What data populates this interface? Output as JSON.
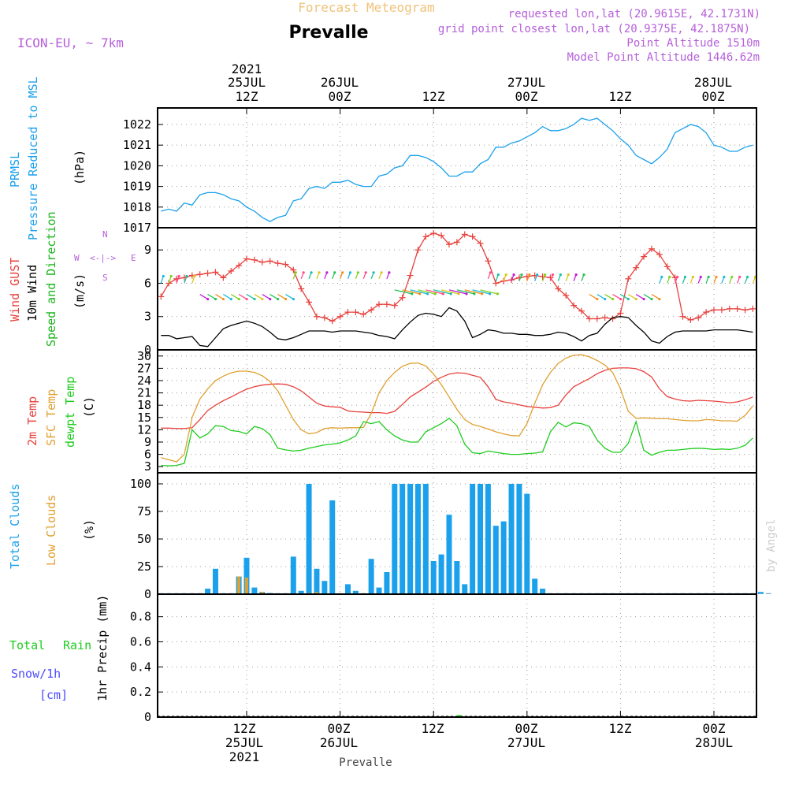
{
  "header": {
    "super_title": "Forecast Meteogram",
    "location": "Prevalle",
    "model": "ICON-EU, ~ 7km",
    "requested": "requested lon,lat (20.9615E, 42.1731N)",
    "grid_point": "grid point closest lon,lat (20.9375E, 42.1875N)",
    "point_altitude": "Point Altitude 1510m",
    "model_altitude": "Model Point Altitude 1446.62m",
    "watermark": "by Angel",
    "bottom_label": "Prevalle"
  },
  "colors": {
    "pressure": "#1ba1ec",
    "gust": "#e8413c",
    "wind": "#000000",
    "wind_dir": "#1bb51b",
    "temp": "#e8413c",
    "sfc": "#e0a030",
    "dew": "#1ecb1e",
    "clouds": "#1ba1ec",
    "low_clouds": "#e0a030",
    "rain": "#1ecb1e",
    "snow": "#4c4cff",
    "header_purple": "#b55fd9",
    "header_orange": "#f0c27a"
  },
  "time_axis": {
    "top_labels": [
      {
        "line1": "2021",
        "line2": "25JUL",
        "line3": "12Z"
      },
      {
        "line1": "",
        "line2": "26JUL",
        "line3": "00Z"
      },
      {
        "line1": "",
        "line2": "",
        "line3": "12Z"
      },
      {
        "line1": "",
        "line2": "27JUL",
        "line3": "00Z"
      },
      {
        "line1": "",
        "line2": "",
        "line3": "12Z"
      },
      {
        "line1": "",
        "line2": "28JUL",
        "line3": "00Z"
      }
    ],
    "bottom_labels": [
      {
        "line1": "12Z",
        "line2": "25JUL",
        "line3": "2021"
      },
      {
        "line1": "00Z",
        "line2": "26JUL",
        "line3": ""
      },
      {
        "line1": "12Z",
        "line2": "",
        "line3": ""
      },
      {
        "line1": "00Z",
        "line2": "27JUL",
        "line3": ""
      },
      {
        "line1": "12Z",
        "line2": "",
        "line3": ""
      },
      {
        "line1": "00Z",
        "line2": "28JUL",
        "line3": ""
      }
    ]
  },
  "panels": {
    "pressure": {
      "label1": "PRMSL",
      "label2": "Pressure Reduced to MSL",
      "unit": "(hPa)"
    },
    "wind": {
      "label1": "Wind GUST",
      "label2": "10m Wind",
      "label3": "Speed and Direction",
      "unit": "(m/s)",
      "compass": {
        "n": "N",
        "s": "S",
        "w": "W",
        "e": "E"
      }
    },
    "temp": {
      "label1": "2m Temp",
      "label2": "SFC Temp",
      "label3": "dewpt Temp",
      "unit": "(C)"
    },
    "clouds": {
      "label1": "Total Clouds",
      "label2": "Low Clouds",
      "unit": "(%)"
    },
    "precip": {
      "label1": "Total",
      "label2": "Rain",
      "label3": "Snow/1h",
      "label4": "[cm]",
      "unit": "1hr Precip (mm)"
    }
  },
  "chart_data": [
    {
      "type": "line",
      "name": "pressure",
      "hours_from": 0,
      "ylim": [
        1017,
        1022.8
      ],
      "yticks": [
        1017,
        1018,
        1019,
        1020,
        1021,
        1022
      ],
      "series": [
        {
          "key": "prmsl",
          "values": [
            1017.8,
            1017.9,
            1017.8,
            1018.2,
            1018.1,
            1018.6,
            1018.7,
            1018.7,
            1018.6,
            1018.4,
            1018.3,
            1018.0,
            1017.8,
            1017.5,
            1017.3,
            1017.5,
            1017.6,
            1018.3,
            1018.4,
            1018.9,
            1019.0,
            1018.9,
            1019.2,
            1019.2,
            1019.3,
            1019.1,
            1019.0,
            1019.0,
            1019.5,
            1019.6,
            1019.9,
            1020.0,
            1020.5,
            1020.5,
            1020.4,
            1020.2,
            1019.9,
            1019.5,
            1019.5,
            1019.7,
            1019.7,
            1020.1,
            1020.3,
            1020.9,
            1020.9,
            1021.1,
            1021.2,
            1021.4,
            1021.6,
            1021.9,
            1021.7,
            1021.7,
            1021.8,
            1022.0,
            1022.3,
            1022.2,
            1022.3,
            1022.0,
            1021.7,
            1021.3,
            1021.0,
            1020.5,
            1020.3,
            1020.1,
            1020.4,
            1020.8,
            1021.6,
            1021.8,
            1022.0,
            1021.9,
            1021.6,
            1021.0,
            1020.9,
            1020.7,
            1020.7,
            1020.9,
            1021.0
          ]
        }
      ]
    },
    {
      "type": "line",
      "name": "wind",
      "ylim": [
        0,
        11
      ],
      "yticks": [
        0,
        3,
        6,
        9
      ],
      "series": [
        {
          "key": "gust",
          "values": [
            4.8,
            6.0,
            6.4,
            6.5,
            6.7,
            6.8,
            6.9,
            7.0,
            6.5,
            7.1,
            7.6,
            8.2,
            8.1,
            7.9,
            8.0,
            7.8,
            7.7,
            7.2,
            5.5,
            4.3,
            3.0,
            2.9,
            2.6,
            3.0,
            3.4,
            3.4,
            3.2,
            3.6,
            4.1,
            4.1,
            4.0,
            4.7,
            6.7,
            9.0,
            10.2,
            10.5,
            10.3,
            9.5,
            9.7,
            10.4,
            10.2,
            9.6,
            8.0,
            6.0,
            6.2,
            6.3,
            6.5,
            6.6,
            6.7,
            6.6,
            6.5,
            5.5,
            4.9,
            4.0,
            3.5,
            2.8,
            2.8,
            2.9,
            2.8,
            3.3,
            6.4,
            7.4,
            8.4,
            9.1,
            8.6,
            7.5,
            6.5,
            3.0,
            2.7,
            2.9,
            3.4,
            3.6,
            3.6,
            3.7,
            3.7,
            3.6,
            3.7
          ]
        },
        {
          "key": "wind10m",
          "values": [
            1.3,
            1.3,
            1.0,
            1.1,
            1.2,
            0.4,
            0.3,
            1.1,
            1.9,
            2.2,
            2.4,
            2.6,
            2.4,
            2.1,
            1.6,
            1.0,
            0.9,
            1.1,
            1.4,
            1.7,
            1.7,
            1.7,
            1.6,
            1.7,
            1.7,
            1.7,
            1.6,
            1.5,
            1.3,
            1.2,
            1.0,
            1.8,
            2.5,
            3.1,
            3.3,
            3.2,
            3.0,
            3.8,
            3.5,
            2.6,
            1.1,
            1.4,
            1.8,
            1.7,
            1.5,
            1.5,
            1.4,
            1.4,
            1.3,
            1.3,
            1.4,
            1.6,
            1.5,
            1.2,
            0.8,
            1.3,
            1.5,
            2.3,
            2.9,
            3.0,
            2.9,
            2.2,
            1.6,
            0.8,
            0.6,
            1.2,
            1.6,
            1.7,
            1.7,
            1.7,
            1.7,
            1.8,
            1.8,
            1.8,
            1.8,
            1.7,
            1.6
          ]
        }
      ]
    },
    {
      "type": "line",
      "name": "temperature",
      "ylim": [
        1.5,
        31.5
      ],
      "yticks": [
        3,
        6,
        9,
        12,
        15,
        18,
        21,
        24,
        27,
        30
      ],
      "series": [
        {
          "key": "t2m",
          "values": [
            12.4,
            12.4,
            12.3,
            12.3,
            12.5,
            14.5,
            16.7,
            18.0,
            19.1,
            20.0,
            21.0,
            21.9,
            22.5,
            22.9,
            23.1,
            23.2,
            23.1,
            22.5,
            21.5,
            20.0,
            18.5,
            17.8,
            17.6,
            17.5,
            16.6,
            16.4,
            16.3,
            16.2,
            16.2,
            16.0,
            16.5,
            18.2,
            20.0,
            21.2,
            22.4,
            23.8,
            24.8,
            25.6,
            25.9,
            25.8,
            25.3,
            24.8,
            22.5,
            19.4,
            18.8,
            18.5,
            18.1,
            17.7,
            17.5,
            17.3,
            17.4,
            18.0,
            20.5,
            22.5,
            23.5,
            24.5,
            25.7,
            26.5,
            27.0,
            27.1,
            27.1,
            26.9,
            26.2,
            24.9,
            22.0,
            20.1,
            19.5,
            19.1,
            19.0,
            19.2,
            19.1,
            19.0,
            18.8,
            18.6,
            18.8,
            19.3,
            20.0
          ]
        },
        {
          "key": "sfc",
          "values": [
            5.2,
            4.7,
            4.2,
            6.0,
            15.0,
            19.5,
            22.0,
            24.0,
            25.1,
            25.9,
            26.3,
            26.3,
            26.0,
            25.2,
            23.8,
            21.5,
            18.0,
            14.5,
            12.0,
            11.0,
            11.3,
            12.3,
            12.5,
            12.4,
            12.5,
            12.5,
            12.6,
            16.0,
            21.0,
            24.0,
            26.0,
            27.5,
            28.2,
            28.3,
            27.6,
            25.6,
            23.0,
            20.0,
            17.0,
            14.5,
            13.3,
            12.8,
            12.2,
            11.5,
            11.0,
            10.6,
            10.5,
            13.5,
            18.5,
            23.0,
            26.0,
            28.2,
            29.5,
            30.2,
            30.3,
            29.8,
            28.9,
            27.8,
            26.0,
            22.0,
            16.5,
            14.8,
            14.9,
            14.8,
            14.7,
            14.7,
            14.5,
            14.3,
            14.2,
            14.2,
            14.5,
            14.4,
            14.2,
            14.2,
            14.1,
            15.5,
            17.8
          ]
        },
        {
          "key": "dew",
          "values": [
            3.3,
            3.2,
            3.3,
            3.8,
            12.0,
            10.0,
            11.0,
            13.0,
            12.8,
            11.8,
            11.6,
            11.0,
            12.8,
            12.3,
            10.8,
            7.5,
            7.1,
            6.8,
            7.0,
            7.5,
            7.9,
            8.3,
            8.5,
            8.8,
            9.5,
            10.5,
            14.0,
            13.5,
            14.0,
            12.0,
            10.5,
            9.5,
            9.0,
            9.0,
            11.5,
            12.5,
            13.5,
            14.8,
            13.0,
            8.5,
            6.4,
            6.2,
            6.8,
            6.5,
            6.2,
            6.0,
            6.0,
            6.2,
            6.3,
            6.6,
            11.5,
            13.8,
            12.7,
            13.7,
            13.5,
            12.8,
            9.5,
            7.5,
            6.5,
            6.5,
            8.7,
            14.0,
            7.0,
            5.8,
            6.5,
            7.0,
            7.0,
            7.2,
            7.4,
            7.5,
            7.4,
            7.2,
            7.3,
            7.2,
            7.5,
            8.2,
            10.0
          ]
        }
      ]
    },
    {
      "type": "bar",
      "name": "clouds",
      "ylim": [
        0,
        110
      ],
      "yticks": [
        0,
        25,
        50,
        75,
        100
      ],
      "series": [
        {
          "key": "total",
          "values": [
            0,
            0,
            0,
            0,
            0,
            0,
            5,
            23,
            0,
            0,
            16,
            33,
            6,
            2,
            1,
            0,
            0,
            34,
            3,
            100,
            23,
            12,
            85,
            0,
            9,
            3,
            0,
            32,
            6,
            20,
            100,
            100,
            100,
            100,
            100,
            30,
            36,
            72,
            30,
            9,
            100,
            100,
            100,
            62,
            66,
            100,
            100,
            91,
            14,
            5,
            0,
            0,
            0,
            0,
            0,
            0,
            0,
            0,
            0,
            0,
            0,
            0,
            0,
            0,
            0,
            0,
            0,
            0,
            0,
            0,
            0,
            0,
            0,
            0,
            0,
            0,
            0,
            2,
            0
          ]
        },
        {
          "key": "low",
          "values": [
            0,
            0,
            0,
            0,
            0,
            0,
            0,
            0,
            0,
            0,
            16,
            15,
            0,
            2,
            0,
            0,
            0,
            0,
            0,
            1,
            2,
            0,
            0,
            0,
            0,
            0,
            0,
            0,
            0,
            0,
            0,
            0,
            0,
            0,
            0,
            0,
            0,
            0,
            0,
            0,
            0,
            0,
            0,
            0,
            0,
            0,
            0,
            0,
            0,
            0,
            0,
            0,
            0,
            0,
            0,
            0,
            0,
            0,
            0,
            0,
            0,
            0,
            0,
            0,
            0,
            0,
            0,
            0,
            0,
            0,
            0,
            0,
            0,
            0,
            0,
            0,
            0,
            0,
            0
          ]
        }
      ]
    },
    {
      "type": "bar",
      "name": "precip",
      "ylim": [
        0,
        0.98
      ],
      "yticks": [
        0,
        0.2,
        0.4,
        0.6,
        0.8
      ],
      "series": [
        {
          "key": "rain",
          "values": []
        }
      ]
    }
  ]
}
